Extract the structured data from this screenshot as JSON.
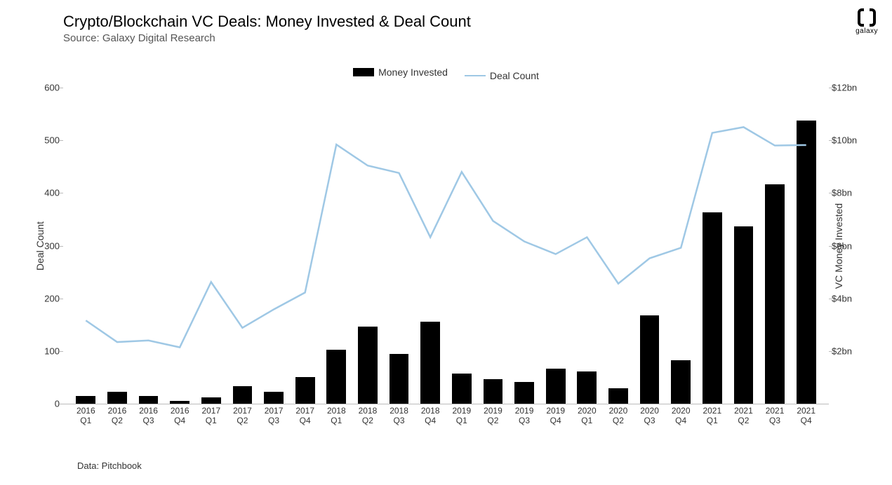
{
  "title": "Crypto/Blockchain VC Deals: Money Invested & Deal Count",
  "subtitle": "Source: Galaxy Digital Research",
  "logo_text": "galaxy",
  "legend": {
    "bar": "Money Invested",
    "line": "Deal Count"
  },
  "y_left": {
    "label": "Deal Count",
    "ticks": [
      0,
      100,
      200,
      300,
      400,
      500,
      600
    ],
    "min": 0,
    "max": 600
  },
  "y_right": {
    "label": "VC Money Invested",
    "ticks": [
      "$2bn",
      "$4bn",
      "$6bn",
      "$8bn",
      "$10bn",
      "$12bn"
    ],
    "tick_vals": [
      2,
      4,
      6,
      8,
      10,
      12
    ],
    "min": 0,
    "max": 12
  },
  "footer": "Data: Pitchbook",
  "chart": {
    "type": "bar+line",
    "bar_color": "#000000",
    "line_color": "#9fc8e5",
    "line_width": 2.5,
    "background_color": "#ffffff",
    "bar_width_ratio": 0.62,
    "categories": [
      {
        "year": "2016",
        "q": "Q1"
      },
      {
        "year": "2016",
        "q": "Q2"
      },
      {
        "year": "2016",
        "q": "Q3"
      },
      {
        "year": "2016",
        "q": "Q4"
      },
      {
        "year": "2017",
        "q": "Q1"
      },
      {
        "year": "2017",
        "q": "Q2"
      },
      {
        "year": "2017",
        "q": "Q3"
      },
      {
        "year": "2017",
        "q": "Q4"
      },
      {
        "year": "2018",
        "q": "Q1"
      },
      {
        "year": "2018",
        "q": "Q2"
      },
      {
        "year": "2018",
        "q": "Q3"
      },
      {
        "year": "2018",
        "q": "Q4"
      },
      {
        "year": "2019",
        "q": "Q1"
      },
      {
        "year": "2019",
        "q": "Q2"
      },
      {
        "year": "2019",
        "q": "Q3"
      },
      {
        "year": "2019",
        "q": "Q4"
      },
      {
        "year": "2020",
        "q": "Q1"
      },
      {
        "year": "2020",
        "q": "Q2"
      },
      {
        "year": "2020",
        "q": "Q3"
      },
      {
        "year": "2020",
        "q": "Q4"
      },
      {
        "year": "2021",
        "q": "Q1"
      },
      {
        "year": "2021",
        "q": "Q2"
      },
      {
        "year": "2021",
        "q": "Q3"
      },
      {
        "year": "2021",
        "q": "Q4"
      }
    ],
    "bar_values": [
      14,
      22,
      15,
      6,
      12,
      33,
      22,
      50,
      103,
      147,
      94,
      156,
      57,
      47,
      41,
      66,
      61,
      29,
      167,
      82,
      363,
      336,
      417,
      538
    ],
    "bar_max": 600,
    "line_values": [
      158,
      117,
      120,
      107,
      231,
      144,
      179,
      211,
      492,
      452,
      438,
      316,
      440,
      347,
      308,
      284,
      316,
      228,
      276,
      296,
      514,
      525,
      490,
      491
    ],
    "line_max": 600
  }
}
